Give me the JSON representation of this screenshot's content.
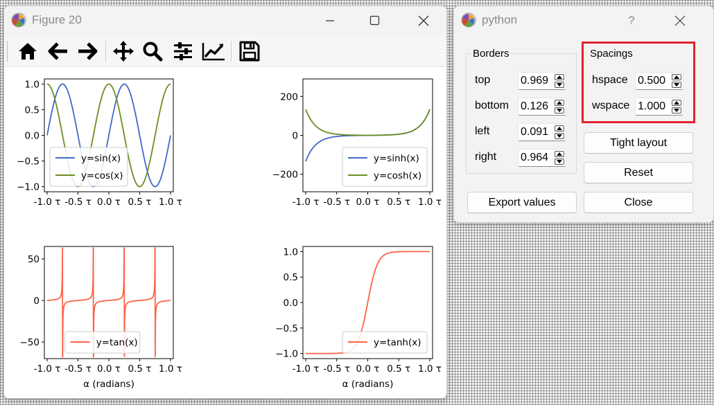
{
  "figure_window": {
    "title": "Figure 20",
    "controls": {
      "minimize": "minimize",
      "maximize": "maximize",
      "close": "close"
    },
    "toolbar": [
      "home-icon",
      "back-icon",
      "forward-icon",
      "pan-icon",
      "zoom-icon",
      "subplots-config-icon",
      "edit-axes-icon",
      "save-icon"
    ]
  },
  "dialog": {
    "title": "python",
    "help": "?",
    "borders": {
      "title": "Borders",
      "rows": [
        {
          "label": "top",
          "value": "0.969"
        },
        {
          "label": "bottom",
          "value": "0.126"
        },
        {
          "label": "left",
          "value": "0.091"
        },
        {
          "label": "right",
          "value": "0.964"
        }
      ]
    },
    "spacings": {
      "title": "Spacings",
      "rows": [
        {
          "label": "hspace",
          "value": "0.500"
        },
        {
          "label": "wspace",
          "value": "1.000"
        }
      ]
    },
    "buttons": {
      "tight_layout": "Tight layout",
      "reset": "Reset",
      "export": "Export values",
      "close": "Close"
    },
    "highlight_color": "#e1222c"
  },
  "chart_data": [
    {
      "type": "line",
      "x_tick_labels": [
        "-1.0 τ",
        "-0.5 τ",
        "0.0 τ",
        "0.5 τ",
        "1.0 τ"
      ],
      "y_tick_labels": [
        "1.0",
        "0.5",
        "0.0",
        "−0.5",
        "−1.0"
      ],
      "xlim": [
        -1,
        1
      ],
      "ylim": [
        -1.1,
        1.1
      ],
      "series": [
        {
          "name": "y=sin(x)",
          "color": "#4169c8",
          "func": "sin"
        },
        {
          "name": "y=cos(x)",
          "color": "#6b8e23",
          "func": "cos"
        }
      ],
      "legend": "lower-left"
    },
    {
      "type": "line",
      "x_tick_labels": [
        "-1.0 τ",
        "-0.5 τ",
        "0.0 τ",
        "0.5 τ",
        "1.0 τ"
      ],
      "y_tick_labels": [
        "200",
        "0",
        "−200"
      ],
      "xlim": [
        -1,
        1
      ],
      "ylim": [
        -290,
        290
      ],
      "series": [
        {
          "name": "y=sinh(x)",
          "color": "#4169c8",
          "func": "sinh"
        },
        {
          "name": "y=cosh(x)",
          "color": "#6b8e23",
          "func": "cosh"
        }
      ],
      "legend": "lower-right"
    },
    {
      "type": "line",
      "x_tick_labels": [
        "-1.0 τ",
        "-0.5 τ",
        "0.0 τ",
        "0.5 τ",
        "1.0 τ"
      ],
      "y_tick_labels": [
        "50",
        "0",
        "−50"
      ],
      "xlabel": "α (radians)",
      "xlim": [
        -1,
        1
      ],
      "ylim": [
        -70,
        65
      ],
      "series": [
        {
          "name": "y=tan(x)",
          "color": "#ff6347",
          "func": "tan"
        }
      ],
      "legend": "lower-center"
    },
    {
      "type": "line",
      "x_tick_labels": [
        "-1.0 τ",
        "-0.5 τ",
        "0.0 τ",
        "0.5 τ",
        "1.0 τ"
      ],
      "y_tick_labels": [
        "1.0",
        "0.5",
        "0.0",
        "−0.5",
        "−1.0"
      ],
      "xlabel": "α (radians)",
      "xlim": [
        -1,
        1
      ],
      "ylim": [
        -1.1,
        1.1
      ],
      "series": [
        {
          "name": "y=tanh(x)",
          "color": "#ff6347",
          "func": "tanh"
        }
      ],
      "legend": "lower-right"
    }
  ]
}
